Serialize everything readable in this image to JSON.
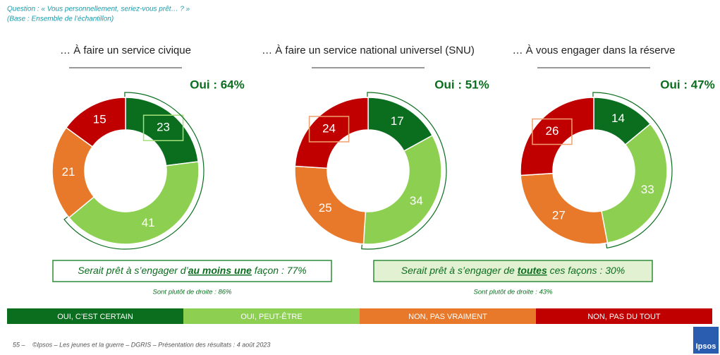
{
  "question": "Question : « Vous personnellement, seriez-vous prêt… ? »",
  "base": "(Base : Ensemble de l’échantillon)",
  "legend": {
    "labels": [
      "OUI, C’EST CERTAIN",
      "OUI, PEUT-ÊTRE",
      "NON, PAS VRAIMENT",
      "NON, PAS DU TOUT"
    ],
    "colors": [
      "#0b6e1f",
      "#8dcf50",
      "#e8782a",
      "#c00000"
    ]
  },
  "chart_data": [
    {
      "type": "donut",
      "title": "… À faire un service civique",
      "annotation": "Oui : 64%",
      "values": [
        23,
        41,
        21,
        15
      ],
      "highlight": 0
    },
    {
      "type": "donut",
      "title": "… À faire un service national universel (SNU)",
      "annotation": "Oui : 51%",
      "values": [
        17,
        34,
        25,
        24
      ],
      "highlight": 3
    },
    {
      "type": "donut",
      "title": "… À vous engager dans la réserve",
      "annotation": "Oui : 47%",
      "values": [
        14,
        33,
        27,
        26
      ],
      "highlight": 3
    }
  ],
  "boxes": [
    {
      "parts": [
        "Serait prêt à s’engager d’",
        "au moins une",
        " façon : 77%"
      ],
      "note": "Sont plutôt de droite : 86%"
    },
    {
      "parts": [
        "Serait prêt à s’engager de ",
        "toutes",
        " ces façons : 30%"
      ],
      "note": "Sont plutôt de droite : 43%"
    }
  ],
  "footer": {
    "page": "55 –",
    "text": "©Ipsos – Les jeunes et la guerre – DGRIS – Présentation des résultats : 4 août 2023",
    "logo": "Ipsos"
  }
}
